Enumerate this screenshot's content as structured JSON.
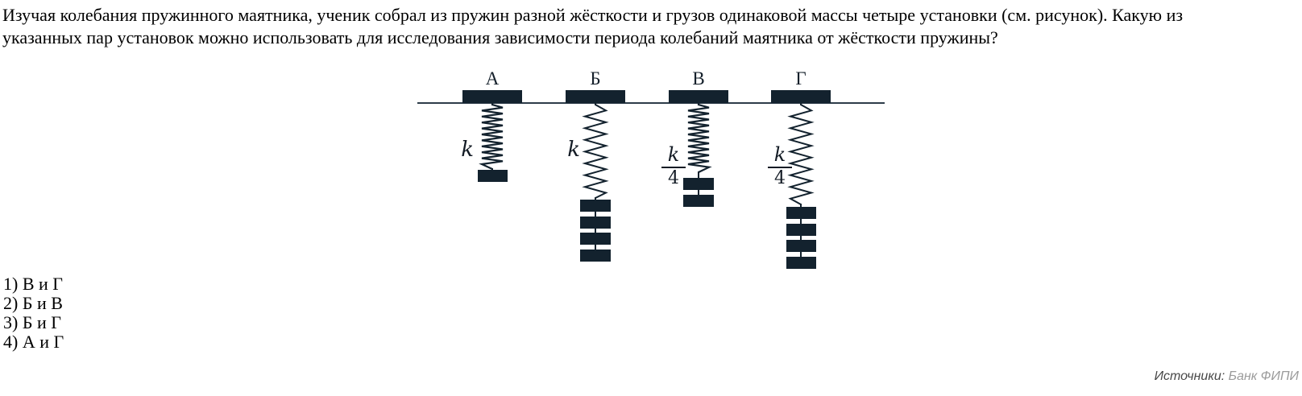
{
  "question": {
    "text": "Изучая колебания пружинного маятника, ученик собрал из пружин разной жёсткости и грузов одинаковой массы четыре установки (см. рисунок). Какую из указанных пар установок можно использовать для исследования зависимости периода колебаний маятника от жёсткости пружины?"
  },
  "figure": {
    "setups": [
      {
        "label": "А",
        "stiffness": {
          "num": "k",
          "den": null
        },
        "weights": 1,
        "spring_coils": "dense"
      },
      {
        "label": "Б",
        "stiffness": {
          "num": "k",
          "den": null
        },
        "weights": 4,
        "spring_coils": "wide"
      },
      {
        "label": "В",
        "stiffness": {
          "num": "k",
          "den": "4"
        },
        "weights": 2,
        "spring_coils": "dense"
      },
      {
        "label": "Г",
        "stiffness": {
          "num": "k",
          "den": "4"
        },
        "weights": 4,
        "spring_coils": "wide"
      }
    ]
  },
  "options": [
    "1) В и Г",
    "2) Б и В",
    "3) Б и Г",
    "4) А и Г"
  ],
  "source": {
    "label": "Источники:",
    "value": "Банк ФИПИ"
  },
  "colors": {
    "ink": "#13222e",
    "ceiling_line": "#2d3c49",
    "source_label": "#474747",
    "source_value": "#9b9b9b"
  }
}
